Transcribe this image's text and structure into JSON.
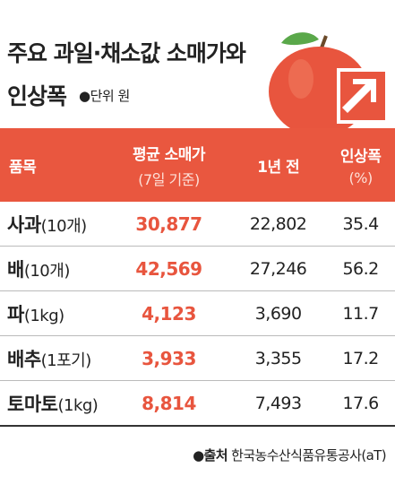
{
  "header": {
    "title_line1": "주요 과일·채소값 소매가와",
    "title_line2": "인상폭",
    "unit": "●단위 원"
  },
  "table": {
    "columns": [
      {
        "label": "품목"
      },
      {
        "label": "평균 소매가",
        "sublabel": "(7일 기준)"
      },
      {
        "label": "1년 전"
      },
      {
        "label": "인상폭",
        "sublabel": "(%)"
      }
    ],
    "rows": [
      {
        "name": "사과",
        "unit": "(10개)",
        "cells": [
          "30,877",
          "22,802",
          "35.4"
        ]
      },
      {
        "name": "배",
        "unit": "(10개)",
        "cells": [
          "42,569",
          "27,246",
          "56.2"
        ]
      },
      {
        "name": "파",
        "unit": "(1kg)",
        "cells": [
          "4,123",
          "3,690",
          "11.7"
        ]
      },
      {
        "name": "배추",
        "unit": "(1포기)",
        "cells": [
          "3,933",
          "3,355",
          "17.2"
        ]
      },
      {
        "name": "토마토",
        "unit": "(1kg)",
        "cells": [
          "8,814",
          "7,493",
          "17.6"
        ]
      }
    ]
  },
  "source": {
    "label": "●출처",
    "text": "한국농수산식품유통공사(aT)"
  }
}
